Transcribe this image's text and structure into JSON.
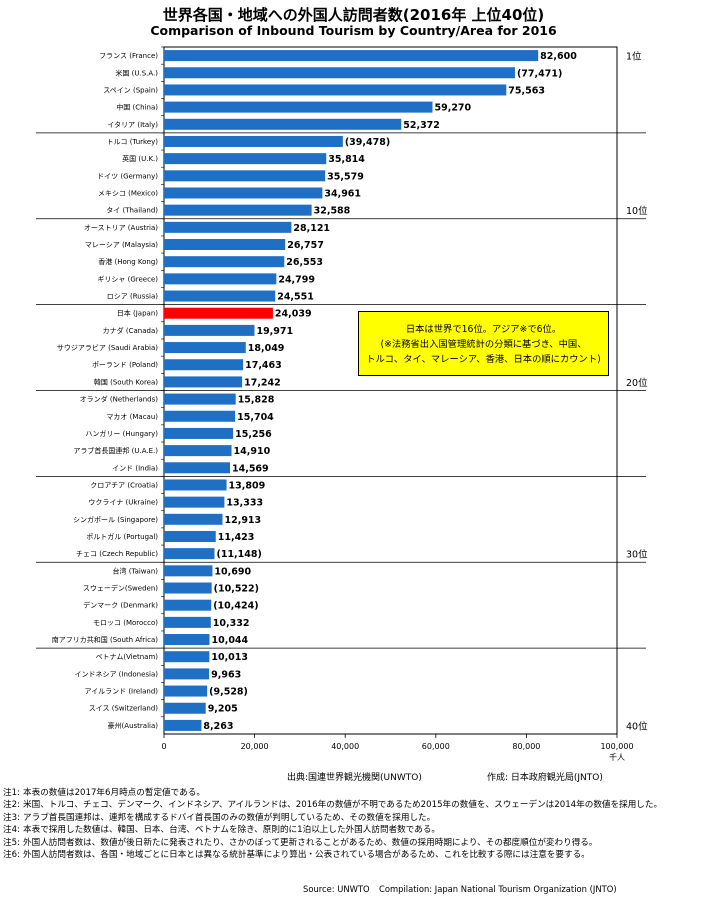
{
  "title": "世界各国・地域への外国人訪問者数(2016年 上位40位)",
  "subtitle": "Comparison of Inbound Tourism by Country/Area for 2016",
  "callout": [
    "日本は世界で16位。アジア※で6位。",
    "(※法務省出入国管理統計の分類に基づき、中国、",
    "トルコ、タイ、マレーシア、香港、日本の順にカウント)"
  ],
  "source_ja": "出典:国連世界観光機関(UNWTO)",
  "compilation_ja": "作成: 日本政府観光局(JNTO)",
  "notes": [
    {
      "label": "注1:",
      "text": "本表の数値は2017年6月時点の暫定値である。"
    },
    {
      "label": "注2:",
      "text": "米国、トルコ、チェコ、デンマーク、インドネシア、アイルランドは、2016年の数値が不明であるため2015年の数値を、スウェーデンは2014年の数値を採用した。"
    },
    {
      "label": "注3:",
      "text": "アラブ首長国連邦は、連邦を構成するドバイ首長国のみの数値が判明しているため、その数値を採用した。"
    },
    {
      "label": "注4:",
      "text": "本表で採用した数値は、韓国、日本、台湾、ベトナムを除き、原則的に1泊以上した外国人訪問者数である。"
    },
    {
      "label": "注5:",
      "text": "外国人訪問者数は、数値が後日新たに発表されたり、さかのぼって更新されることがあるため、数値の採用時期により、その都度順位が変わり得る。"
    },
    {
      "label": "注6:",
      "text": "外国人訪問者数は、各国・地域ごとに日本とは異なる統計基準により算出・公表されている場合があるため、これを比較する際には注意を要する。"
    }
  ],
  "source_en": "Source: UNWTO",
  "compilation_en": "Compilation: Japan National Tourism Organization (JNTO)",
  "colors": {
    "bar": "#1f6fc4",
    "highlight": "#ff0000",
    "callout": "#ffff00"
  },
  "chart_data": {
    "type": "bar",
    "orientation": "horizontal",
    "title": "世界各国・地域への外国人訪問者数(2016年 上位40位)",
    "subtitle": "Comparison of Inbound Tourism by Country/Area for 2016",
    "unit": "千人",
    "xlim": [
      0,
      100000
    ],
    "xticks": [
      0,
      20000,
      40000,
      60000,
      80000,
      100000
    ],
    "xtick_labels": [
      "0",
      "20,000",
      "40,000",
      "60,000",
      "80,000",
      "100,000"
    ],
    "categories": [
      "フランス (France)",
      "米国 (U.S.A.)",
      "スペイン (Spain)",
      "中国 (China)",
      "イタリア (Italy)",
      "トルコ (Turkey)",
      "英国 (U.K.)",
      "ドイツ (Germany)",
      "メキシコ (Mexico)",
      "タイ (Thailand)",
      "オーストリア (Austria)",
      "マレーシア (Malaysia)",
      "香港 (Hong Kong)",
      "ギリシャ (Greece)",
      "ロシア (Russia)",
      "日本 (Japan)",
      "カナダ (Canada)",
      "サウジアラビア (Saudi Arabia)",
      "ポーランド (Poland)",
      "韓国 (South Korea)",
      "オランダ (Netherlands)",
      "マカオ (Macau)",
      "ハンガリー (Hungary)",
      "アラブ首長国連邦 (U.A.E.)",
      "インド (India)",
      "クロアチア (Croatia)",
      "ウクライナ (Ukraine)",
      "シンガポール (Singapore)",
      "ポルトガル (Portugal)",
      "チェコ (Czech Republic)",
      "台湾 (Taiwan)",
      "スウェーデン(Sweden)",
      "デンマーク (Denmark)",
      "モロッコ (Morocco)",
      "南アフリカ共和国 (South Africa)",
      "ベトナム(Vietnam)",
      "インドネシア (Indonesia)",
      "アイルランド (Ireland)",
      "スイス (Switzerland)",
      "豪州(Australia)"
    ],
    "values": [
      82600,
      77471,
      75563,
      59270,
      52372,
      39478,
      35814,
      35579,
      34961,
      32588,
      28121,
      26757,
      26553,
      24799,
      24551,
      24039,
      19971,
      18049,
      17463,
      17242,
      15828,
      15704,
      15256,
      14910,
      14569,
      13809,
      13333,
      12913,
      11423,
      11148,
      10690,
      10522,
      10424,
      10332,
      10044,
      10013,
      9963,
      9528,
      9205,
      8263
    ],
    "value_labels": [
      "82,600",
      "(77,471)",
      "75,563",
      "59,270",
      "52,372",
      "(39,478)",
      "35,814",
      "35,579",
      "34,961",
      "32,588",
      "28,121",
      "26,757",
      "26,553",
      "24,799",
      "24,551",
      "24,039",
      "19,971",
      "18,049",
      "17,463",
      "17,242",
      "15,828",
      "15,704",
      "15,256",
      "14,910",
      "14,569",
      "13,809",
      "13,333",
      "12,913",
      "11,423",
      "(11,148)",
      "10,690",
      "(10,522)",
      "(10,424)",
      "10,332",
      "10,044",
      "10,013",
      "9,963",
      "(9,528)",
      "9,205",
      "8,263"
    ],
    "highlight_index": 15,
    "group_labels": [
      {
        "rank": 1,
        "label": "1位"
      },
      {
        "rank": 10,
        "label": "10位"
      },
      {
        "rank": 20,
        "label": "20位"
      },
      {
        "rank": 30,
        "label": "30位"
      },
      {
        "rank": 40,
        "label": "40位"
      }
    ],
    "separators_after_rank": [
      5,
      10,
      15,
      20,
      25,
      30,
      35
    ],
    "grid": false
  }
}
